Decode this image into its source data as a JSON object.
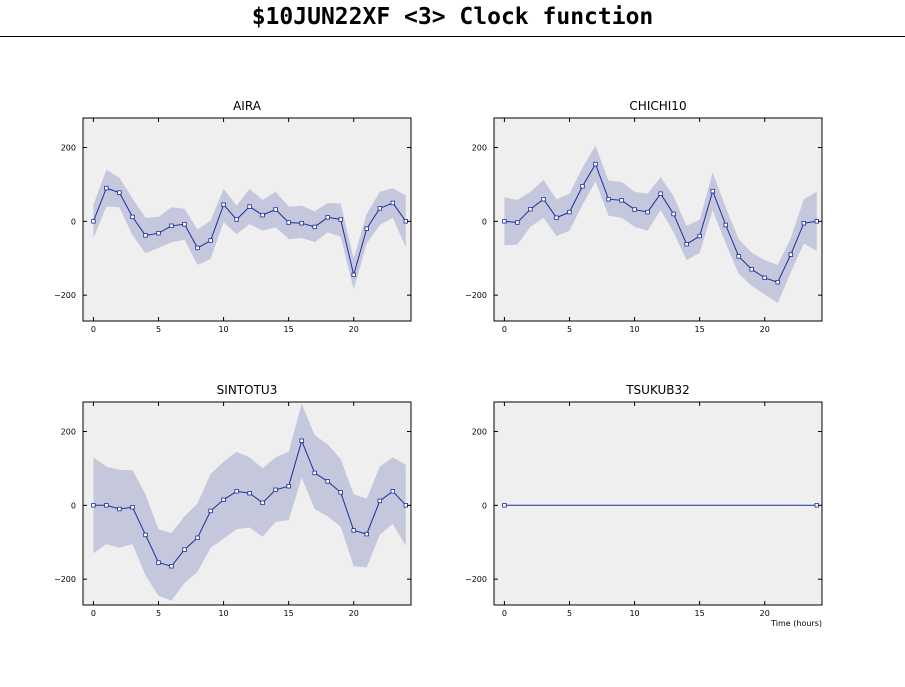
{
  "title": "$10JUN22XF <3>  Clock function",
  "chart_data": [
    {
      "type": "line",
      "title": "AIRA",
      "xlabel": "",
      "ylabel": "",
      "xlim": [
        -0.8,
        24.4
      ],
      "ylim": [
        -270,
        280
      ],
      "xticks": [
        0,
        5,
        10,
        15,
        20
      ],
      "yticks": [
        -200,
        0,
        200
      ],
      "series": [
        {
          "x": [
            0,
            1,
            2,
            3,
            4,
            5,
            6,
            7,
            8,
            9,
            10,
            11,
            12,
            13,
            14,
            15,
            16,
            17,
            18,
            19,
            20,
            21,
            22,
            23,
            24
          ],
          "values": [
            0,
            90,
            78,
            12,
            -38,
            -32,
            -12,
            -8,
            -72,
            -52,
            45,
            5,
            40,
            17,
            32,
            -3,
            -5,
            -15,
            11,
            5,
            -145,
            -20,
            35,
            50,
            0
          ],
          "band_upper": [
            45,
            140,
            118,
            62,
            10,
            12,
            38,
            34,
            -22,
            2,
            88,
            42,
            88,
            58,
            80,
            40,
            42,
            27,
            50,
            48,
            -100,
            20,
            80,
            90,
            70
          ],
          "band_lower": [
            -45,
            40,
            38,
            -38,
            -86,
            -72,
            -57,
            -50,
            -118,
            -102,
            -2,
            -35,
            -8,
            -25,
            -16,
            -48,
            -45,
            -56,
            -30,
            -42,
            -185,
            -60,
            -10,
            10,
            -70
          ]
        }
      ],
      "colors": {
        "line": "#1a2f9b",
        "band": "#c5c8dc",
        "plot_bg": "#efefef"
      }
    },
    {
      "type": "line",
      "title": "CHICHI10",
      "xlabel": "",
      "ylabel": "",
      "xlim": [
        -0.8,
        24.4
      ],
      "ylim": [
        -270,
        280
      ],
      "xticks": [
        0,
        5,
        10,
        15,
        20
      ],
      "yticks": [
        -200,
        0,
        200
      ],
      "series": [
        {
          "x": [
            0,
            1,
            2,
            3,
            4,
            5,
            6,
            7,
            8,
            9,
            10,
            11,
            12,
            13,
            14,
            15,
            16,
            17,
            18,
            19,
            20,
            21,
            22,
            23,
            24
          ],
          "values": [
            0,
            -3,
            33,
            60,
            10,
            25,
            95,
            155,
            60,
            57,
            32,
            25,
            75,
            20,
            -62,
            -40,
            82,
            -10,
            -95,
            -130,
            -153,
            -165,
            -90,
            -5,
            0
          ],
          "band_upper": [
            65,
            58,
            80,
            112,
            60,
            75,
            145,
            205,
            110,
            107,
            80,
            75,
            120,
            68,
            -12,
            5,
            132,
            38,
            -48,
            -85,
            -105,
            -118,
            -45,
            60,
            80
          ],
          "band_lower": [
            -65,
            -63,
            -15,
            10,
            -40,
            -25,
            45,
            108,
            15,
            10,
            -15,
            -25,
            30,
            -30,
            -105,
            -85,
            30,
            -60,
            -142,
            -175,
            -198,
            -222,
            -138,
            -60,
            -80
          ]
        }
      ],
      "colors": {
        "line": "#1a2f9b",
        "band": "#c5c8dc",
        "plot_bg": "#efefef"
      }
    },
    {
      "type": "line",
      "title": "SINTOTU3",
      "xlabel": "",
      "ylabel": "",
      "xlim": [
        -0.8,
        24.4
      ],
      "ylim": [
        -270,
        280
      ],
      "xticks": [
        0,
        5,
        10,
        15,
        20
      ],
      "yticks": [
        -200,
        0,
        200
      ],
      "series": [
        {
          "x": [
            0,
            1,
            2,
            3,
            4,
            5,
            6,
            7,
            8,
            9,
            10,
            11,
            12,
            13,
            14,
            15,
            16,
            17,
            18,
            19,
            20,
            21,
            22,
            23,
            24
          ],
          "values": [
            0,
            0,
            -10,
            -5,
            -80,
            -155,
            -165,
            -120,
            -88,
            -15,
            15,
            38,
            33,
            7,
            42,
            52,
            175,
            88,
            65,
            35,
            -68,
            -78,
            12,
            38,
            0
          ],
          "band_upper": [
            130,
            105,
            96,
            95,
            30,
            -65,
            -75,
            -30,
            5,
            85,
            118,
            145,
            130,
            100,
            130,
            145,
            275,
            190,
            165,
            125,
            30,
            18,
            105,
            130,
            110
          ],
          "band_lower": [
            -130,
            -105,
            -115,
            -105,
            -190,
            -245,
            -258,
            -210,
            -180,
            -115,
            -90,
            -65,
            -60,
            -85,
            -45,
            -40,
            75,
            -10,
            -30,
            -58,
            -165,
            -168,
            -80,
            -50,
            -110
          ]
        }
      ],
      "colors": {
        "line": "#1a2f9b",
        "band": "#c5c8dc",
        "plot_bg": "#efefef"
      }
    },
    {
      "type": "line",
      "title": "TSUKUB32",
      "xlabel": "Time (hours)",
      "ylabel": "",
      "xlim": [
        -0.8,
        24.4
      ],
      "ylim": [
        -270,
        280
      ],
      "xticks": [
        0,
        5,
        10,
        15,
        20
      ],
      "yticks": [
        -200,
        0,
        200
      ],
      "series": [
        {
          "x": [
            0,
            24
          ],
          "values": [
            0,
            0
          ],
          "band_upper": [
            0,
            0
          ],
          "band_lower": [
            0,
            0
          ]
        }
      ],
      "colors": {
        "line": "#1a2f9b",
        "band": "#c5c8dc",
        "plot_bg": "#efefef"
      }
    }
  ]
}
